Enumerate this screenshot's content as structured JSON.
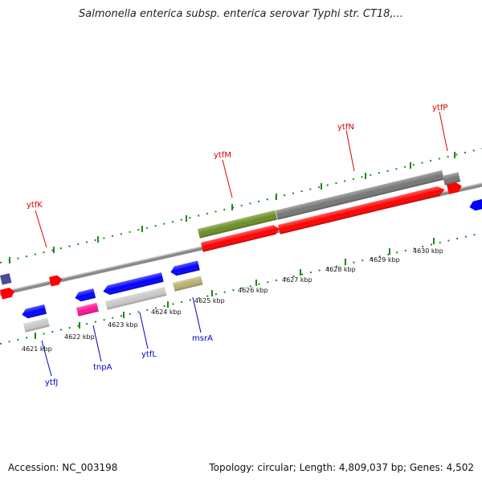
{
  "title": "Salmonella enterica subsp. enterica serovar Typhi str. CT18,...",
  "footer": {
    "accession": "Accession: NC_003198",
    "stats": "Topology: circular; Length: 4,809,037 bp; Genes: 4,502"
  },
  "colors": {
    "backbone": "#888888",
    "ticks": "#1a8a1a",
    "label_top": "#dd0000",
    "label_bottom": "#0000cc",
    "gene_red": "#ff0000",
    "gene_blue": "#0000ff",
    "gene_gray": "#777777",
    "gene_olive": "#6b8e23",
    "gene_pink": "#ff1493",
    "gene_khaki": "#b8b070",
    "gene_light": "#c8c8c8",
    "gene_navy": "#4a4a9a"
  },
  "kbp_labels": [
    "4621 kbp",
    "4622 kbp",
    "4623 kbp",
    "4624 kbp",
    "4625 kbp",
    "4626 kbp",
    "4627 kbp",
    "4628 kbp",
    "4629 kbp",
    "4630 kbp"
  ],
  "gene_labels_top": [
    "ytfK",
    "ytfM",
    "ytfN",
    "ytfP"
  ],
  "gene_labels_bottom": [
    "ytfJ",
    "tnpA",
    "ytfL",
    "msrA"
  ]
}
